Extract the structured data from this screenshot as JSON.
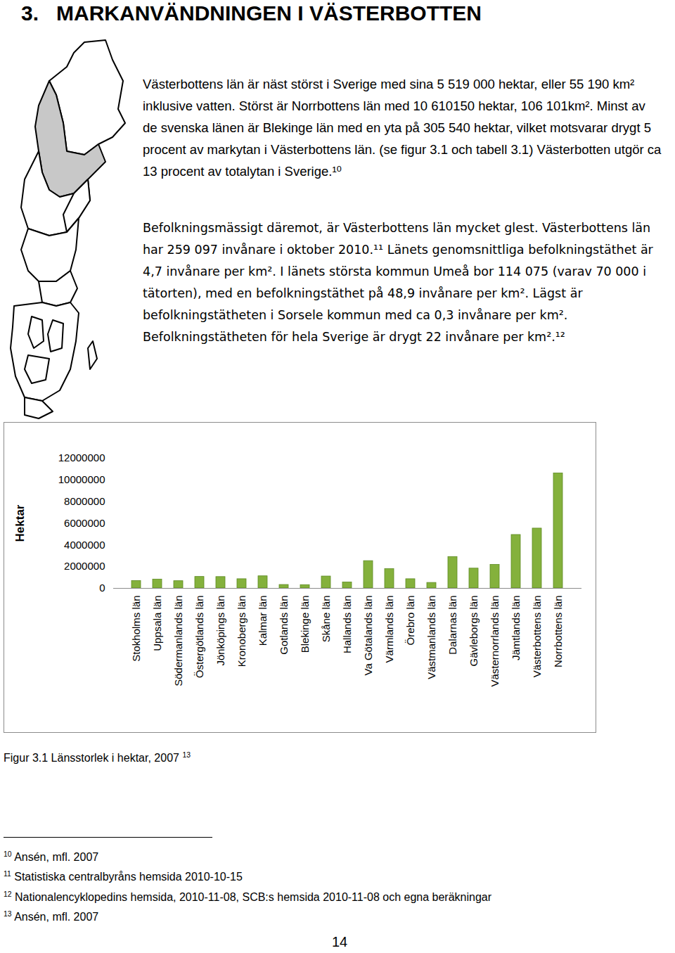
{
  "heading": {
    "number": "3.",
    "title": "MARKANVÄNDNINGEN I VÄSTERBOTTEN"
  },
  "paragraphs": [
    "Västerbottens län är näst störst i Sverige med sina 5 519 000 hektar, eller 55 190 km² inklusive vatten. Störst är Norrbottens län med 10 610150 hektar, 106 101km². Minst av de svenska länen är Blekinge län med en yta på 305 540 hektar, vilket motsvarar drygt 5 procent av markytan i Västerbottens län. (se figur 3.1 och tabell 3.1) Västerbotten utgör ca 13 procent av totalytan i Sverige.¹⁰",
    "Befolkningsmässigt däremot, är Västerbottens län mycket glest. Västerbottens län har 259 097 invånare i oktober 2010.¹¹ Länets genomsnittliga befolkningstäthet är 4,7 invånare per km². I länets största kommun Umeå bor 114 075 (varav 70 000 i tätorten), med en befolkningstäthet på 48,9 invånare per km². Lägst är befolkningstätheten i Sorsele kommun med ca 0,3 invånare per km². Befolkningstätheten för hela Sverige är drygt 22 invånare per km².¹²"
  ],
  "chart_data": {
    "type": "bar",
    "y_label": "Hektar",
    "categories": [
      "Stokholms län",
      "Uppsala län",
      "Södermanlands län",
      "Östergötlands län",
      "Jönköpings län",
      "Kronobergs län",
      "Kalmar län",
      "Gotlands län",
      "Blekinge län",
      "Skåne län",
      "Hallands län",
      "Va Götalands län",
      "Värmlands län",
      "Örebro län",
      "Västmanlands län",
      "Dalarnas län",
      "Gävleborgs län",
      "Västernorrlands län",
      "Jämtlands län",
      "Västerbottens län",
      "Norrbottens län"
    ],
    "values": [
      680000,
      820000,
      670000,
      1060000,
      1050000,
      850000,
      1120000,
      320000,
      305540,
      1100000,
      550000,
      2520000,
      1780000,
      850000,
      510000,
      2900000,
      1830000,
      2170000,
      4930000,
      5519000,
      10610150
    ],
    "color": "#84b13c",
    "ylim": [
      0,
      12000000
    ],
    "yticks": [
      0,
      2000000,
      4000000,
      6000000,
      8000000,
      10000000,
      12000000
    ],
    "grid": false
  },
  "caption": {
    "text": "Figur 3.1 Länsstorlek i hektar, 2007",
    "footnote_ref": "13"
  },
  "footnotes": [
    {
      "number": "10",
      "text": "Ansén, mfl. 2007"
    },
    {
      "number": "11",
      "text": "Statistiska centralbyråns hemsida 2010-10-15"
    },
    {
      "number": "12",
      "text": "Nationalencyklopedins hemsida, 2010-11-08, SCB:s hemsida 2010-11-08 och egna beräkningar"
    },
    {
      "number": "13",
      "text": "Ansén, mfl. 2007"
    }
  ],
  "page_number": "14"
}
